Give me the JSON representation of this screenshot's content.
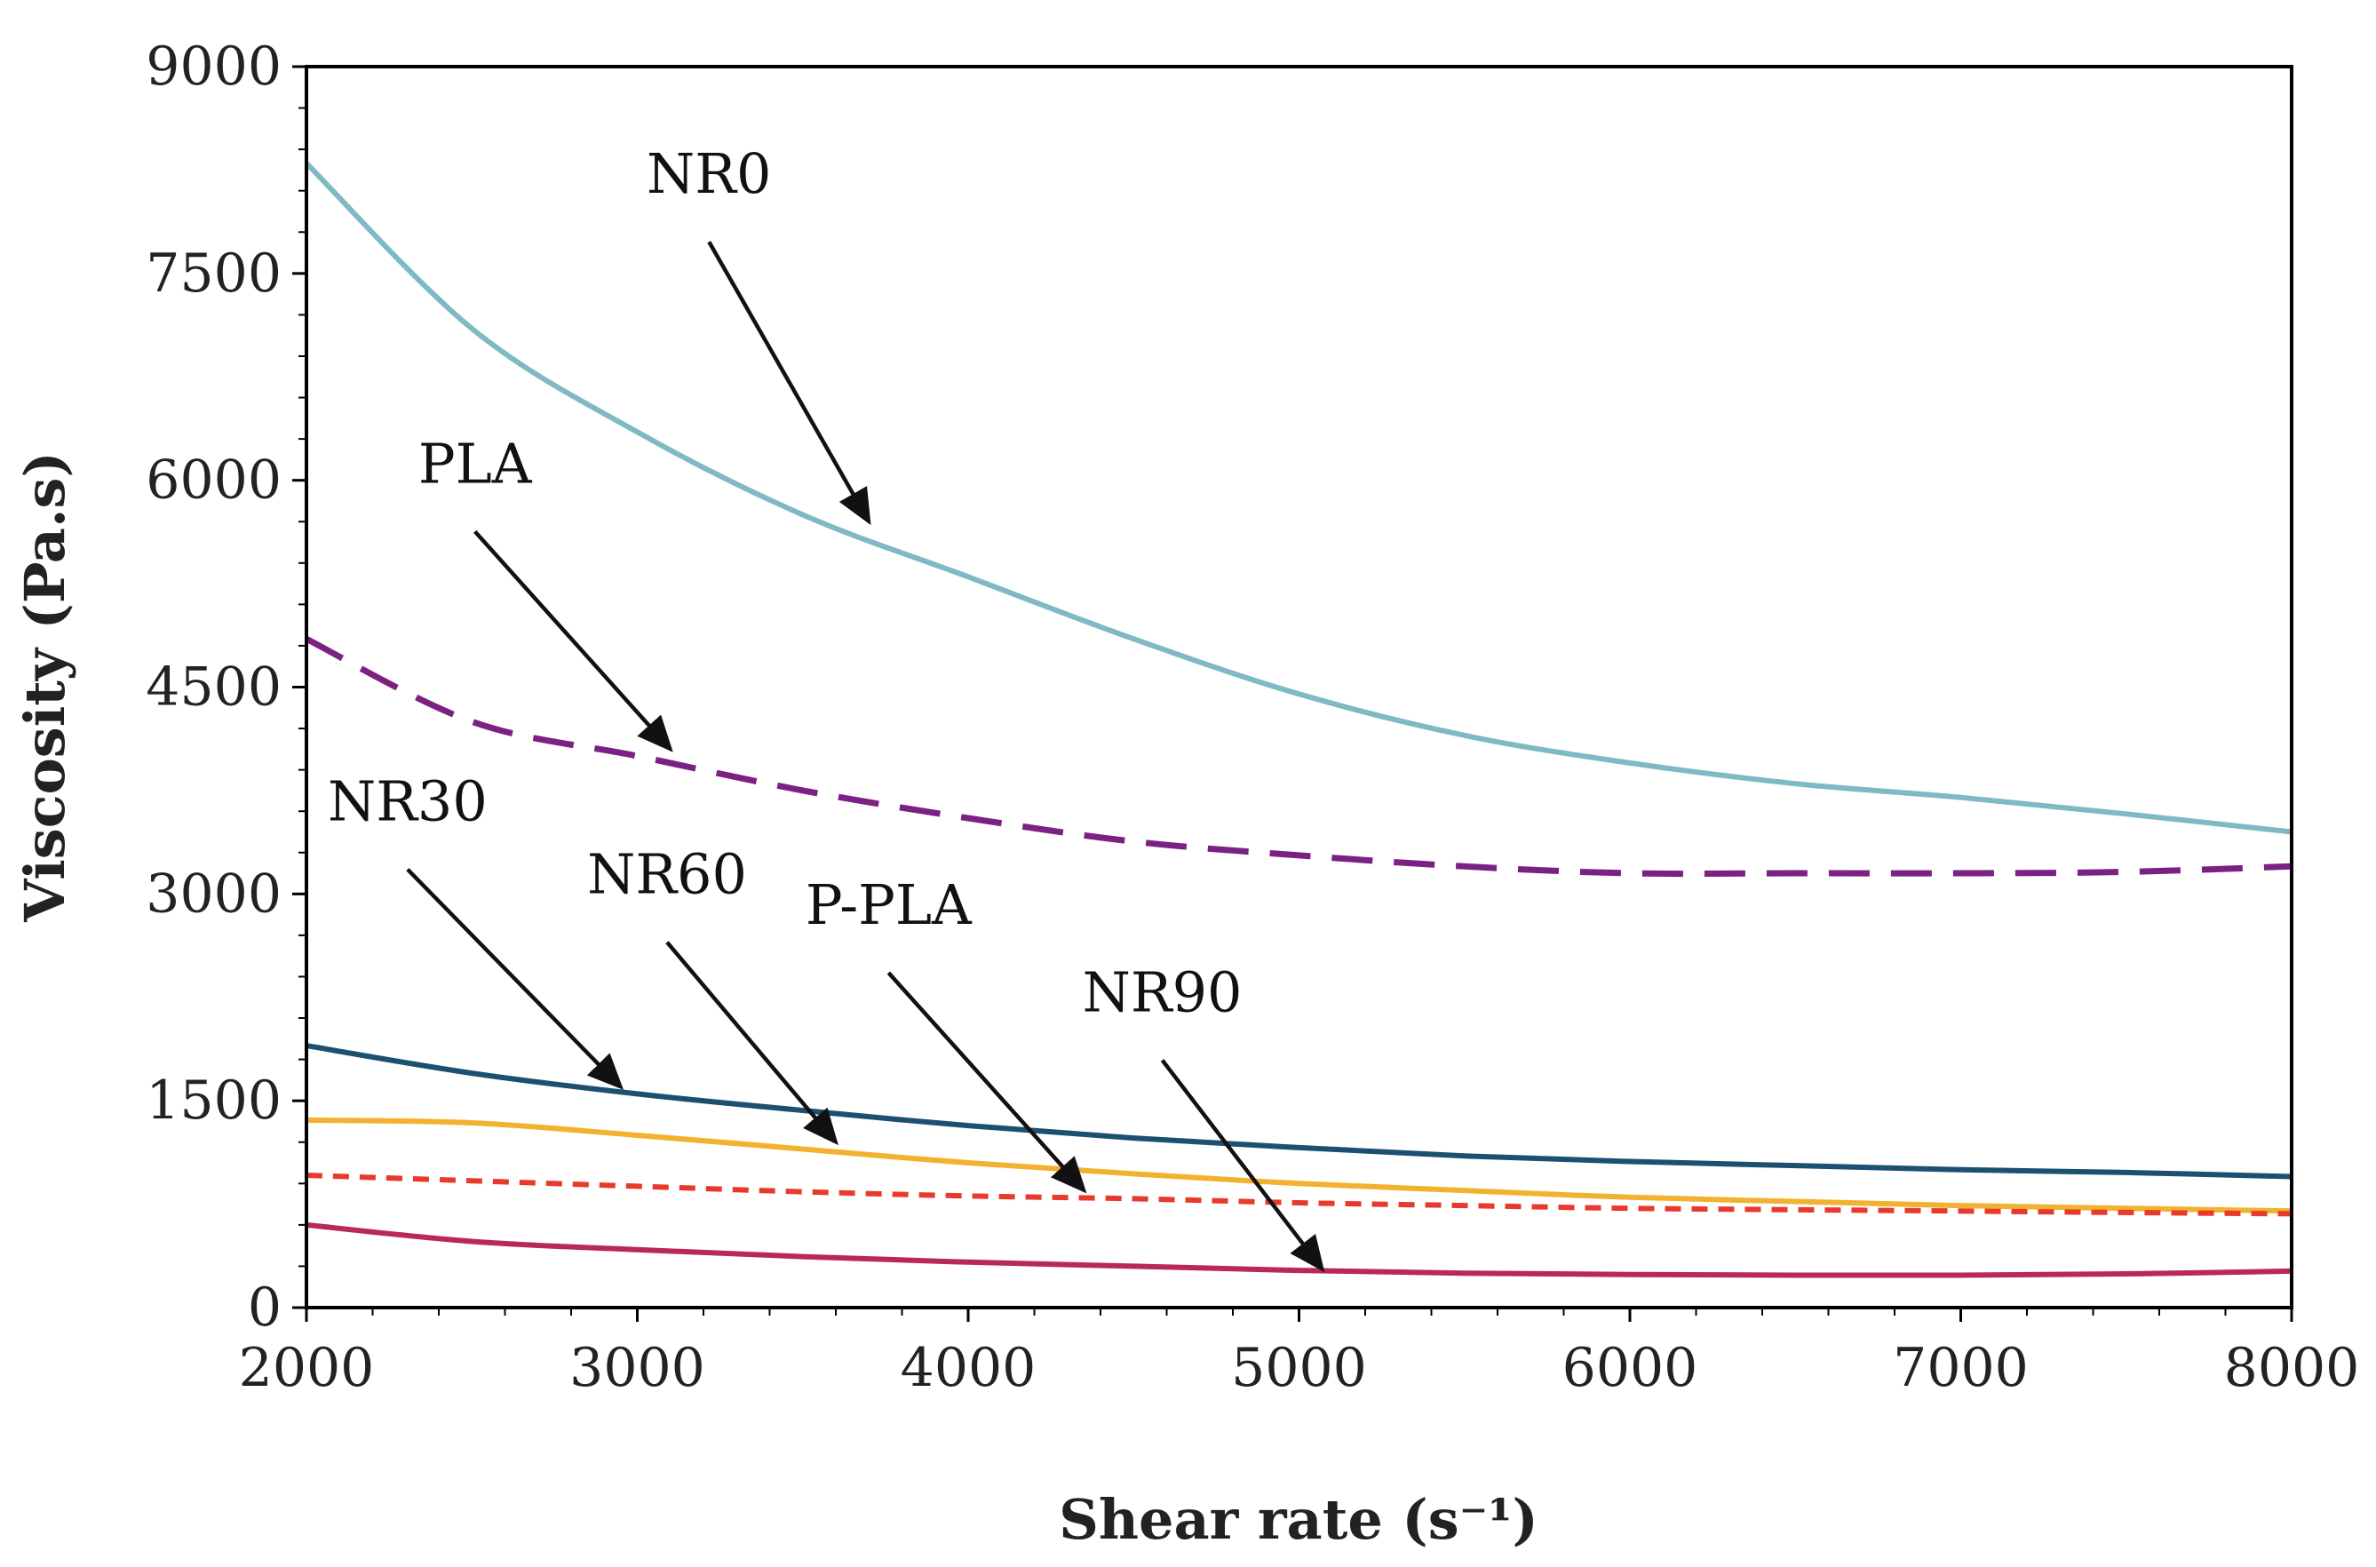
{
  "chart_data": {
    "type": "line",
    "title": "",
    "xlabel": "Shear rate (s⁻¹)",
    "ylabel": "Viscosity (Pa.s)",
    "xlim": [
      2000,
      8000
    ],
    "ylim": [
      0,
      9000
    ],
    "xticks": [
      2000,
      3000,
      4000,
      5000,
      6000,
      7000,
      8000
    ],
    "yticks": [
      0,
      1500,
      3000,
      4500,
      6000,
      7500,
      9000
    ],
    "x": [
      2000,
      2500,
      3000,
      3500,
      4000,
      4500,
      5000,
      5500,
      6000,
      6500,
      7000,
      7500,
      8000
    ],
    "series": [
      {
        "name": "NR0",
        "color": "#7fb9c3",
        "dash": "solid",
        "values": [
          8300,
          7100,
          6350,
          5750,
          5300,
          4850,
          4450,
          4150,
          3950,
          3800,
          3700,
          3580,
          3450
        ]
      },
      {
        "name": "PLA",
        "color": "#7b2183",
        "dash": "dashed",
        "values": [
          4850,
          4250,
          4000,
          3750,
          3550,
          3380,
          3280,
          3200,
          3150,
          3150,
          3150,
          3160,
          3200
        ]
      },
      {
        "name": "NR30",
        "color": "#1c4f72",
        "dash": "solid",
        "values": [
          1900,
          1700,
          1550,
          1430,
          1320,
          1230,
          1160,
          1100,
          1060,
          1030,
          1000,
          980,
          950
        ]
      },
      {
        "name": "NR60",
        "color": "#f2b12e",
        "dash": "solid",
        "values": [
          1360,
          1340,
          1250,
          1150,
          1050,
          970,
          900,
          850,
          800,
          770,
          740,
          720,
          700
        ]
      },
      {
        "name": "P-PLA",
        "color": "#e83a2c",
        "dash": "short-dash",
        "values": [
          960,
          920,
          880,
          840,
          810,
          790,
          760,
          740,
          720,
          710,
          700,
          690,
          680
        ]
      },
      {
        "name": "NR90",
        "color": "#b8285a",
        "dash": "solid",
        "values": [
          600,
          480,
          420,
          370,
          330,
          300,
          270,
          250,
          240,
          235,
          235,
          245,
          265
        ]
      }
    ],
    "annotations": [
      {
        "text": "NR0",
        "target": [
          3700,
          5700
        ]
      },
      {
        "text": "PLA",
        "target": [
          3100,
          4050
        ]
      },
      {
        "text": "NR30",
        "target": [
          2950,
          1600
        ]
      },
      {
        "text": "NR60",
        "target": [
          3600,
          1200
        ]
      },
      {
        "text": "P-PLA",
        "target": [
          4350,
          850
        ]
      },
      {
        "text": "NR90",
        "target": [
          5070,
          280
        ]
      }
    ]
  }
}
